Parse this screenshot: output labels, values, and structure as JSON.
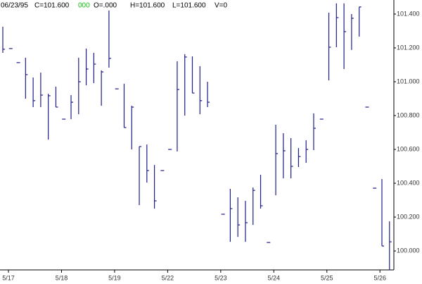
{
  "chart_data": {
    "type": "hlc",
    "info": [
      "06/23/95",
      "C=101.600",
      "000",
      "O=.000",
      "H=101.600",
      "L=101.600",
      "V=0"
    ],
    "categories": [
      "5/17",
      null,
      null,
      null,
      null,
      null,
      null,
      "5/18",
      null,
      null,
      null,
      null,
      null,
      null,
      "5/19",
      null,
      null,
      null,
      null,
      null,
      null,
      "5/22",
      null,
      null,
      null,
      null,
      null,
      null,
      "5/23",
      null,
      null,
      null,
      null,
      null,
      null,
      "5/24",
      null,
      null,
      null,
      null,
      null,
      null,
      "5/25",
      null,
      null,
      null,
      null,
      null,
      null,
      "5/26",
      null,
      null
    ],
    "color": "#1c1c8a",
    "high": [
      101.325,
      101.196,
      101.113,
      101.142,
      101.025,
      101.054,
      100.929,
      100.971,
      100.779,
      100.921,
      101.142,
      101.196,
      101.171,
      101.067,
      101.421,
      100.958,
      100.988,
      100.858,
      100.617,
      100.629,
      100.508,
      100.475,
      100.6,
      101.121,
      101.163,
      101.15,
      101.092,
      101.0,
      null,
      100.217,
      100.367,
      100.317,
      100.296,
      100.375,
      100.45,
      100.05,
      100.746,
      100.696,
      100.667,
      100.608,
      100.654,
      100.813,
      100.779,
      101.408,
      101.463,
      101.463,
      101.4,
      101.442,
      100.85,
      100.371,
      100.425,
      100.175
    ],
    "low": [
      101.171,
      101.196,
      101.113,
      100.9,
      100.85,
      100.85,
      100.658,
      100.85,
      100.779,
      100.779,
      100.808,
      100.979,
      100.992,
      100.858,
      101.083,
      100.958,
      100.729,
      100.6,
      100.271,
      100.404,
      100.25,
      100.475,
      100.6,
      100.588,
      100.8,
      100.933,
      100.808,
      100.85,
      null,
      100.217,
      100.054,
      100.083,
      100.054,
      100.154,
      100.25,
      100.05,
      100.329,
      100.429,
      100.429,
      100.496,
      100.521,
      100.596,
      100.779,
      101.008,
      101.204,
      101.075,
      101.188,
      101.267,
      100.85,
      100.371,
      100.029,
      99.888
    ],
    "close": [
      101.192,
      101.196,
      101.113,
      101.042,
      100.888,
      100.921,
      100.917,
      100.85,
      100.779,
      100.879,
      101.0,
      101.075,
      101.104,
      101.058,
      101.138,
      100.958,
      100.729,
      100.85,
      100.617,
      100.475,
      100.296,
      100.475,
      100.6,
      100.954,
      101.146,
      100.933,
      100.888,
      100.879,
      null,
      100.217,
      100.25,
      100.154,
      100.167,
      100.358,
      100.267,
      100.05,
      100.575,
      100.592,
      100.5,
      100.558,
      100.6,
      100.725,
      100.779,
      101.204,
      101.379,
      101.296,
      101.375,
      101.442,
      100.85,
      100.371,
      100.029,
      100.054
    ],
    "ylim": [
      99.888,
      101.483
    ],
    "yticks": [
      {
        "value": 100.0,
        "label": "100.000"
      },
      {
        "value": 100.2,
        "label": "100.200"
      },
      {
        "value": 100.4,
        "label": "100.400"
      },
      {
        "value": 100.6,
        "label": "100.600"
      },
      {
        "value": 100.8,
        "label": "100.800"
      },
      {
        "value": 101.0,
        "label": "101.000"
      },
      {
        "value": 101.2,
        "label": "101.200"
      },
      {
        "value": 101.4,
        "label": "101.400"
      }
    ]
  }
}
